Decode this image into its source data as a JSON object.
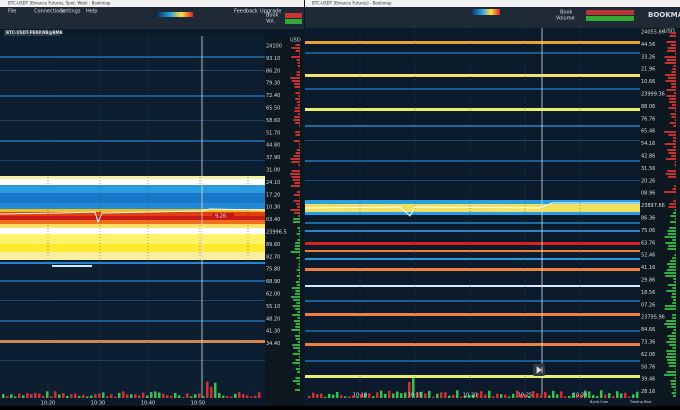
{
  "left_window": {
    "title": "BTC-USDT (Binance Futures, Spot, Web) - Bookmap",
    "menu": [
      "File",
      "Connections",
      "Settings",
      "Help",
      "Feedback",
      "Upgrade"
    ],
    "tab": "BTC-USDT-PERP.NB@BMB",
    "book_label": "Book",
    "vol_label": "Vol.",
    "axis_unit": "USD",
    "current_price": "9.26",
    "prices": [
      "24100",
      "93.10",
      "86.20",
      "79.30",
      "72.40",
      "65.50",
      "58.60",
      "51.70",
      "44.80",
      "37.90",
      "31.00",
      "24.10",
      "17.20",
      "10.30",
      "03.40",
      "23996.5",
      "89.60",
      "82.70",
      "75.80",
      "68.90",
      "62.00",
      "55.10",
      "48.20",
      "41.30",
      "34.40"
    ],
    "times": [
      "10:20",
      "10:30",
      "10:40",
      "10:50"
    ]
  },
  "right_window": {
    "title": "BTC-USDT (Binance Futures) - Bookmap",
    "book_label": "Book",
    "volume_label": "Volume",
    "logo": "BOOKMAP",
    "axis_unit": "USD",
    "prices": [
      "24055.86",
      "44.56",
      "33.26",
      "21.96",
      "10.66",
      "23999.36",
      "88.06",
      "76.76",
      "65.46",
      "54.16",
      "42.86",
      "31.56",
      "20.26",
      "08.96",
      "23897.66",
      "86.36",
      "75.06",
      "63.76",
      "52.46",
      "41.16",
      "29.86",
      "18.56",
      "07.26",
      "23795.96",
      "84.66",
      "73.36",
      "62.06",
      "50.76",
      "39.46",
      "28.16"
    ],
    "times": [
      "10:10",
      "10:15",
      "10:20",
      "10:25",
      "10:30"
    ],
    "status": [
      "Bybit.Com",
      "Trading Real"
    ]
  }
}
